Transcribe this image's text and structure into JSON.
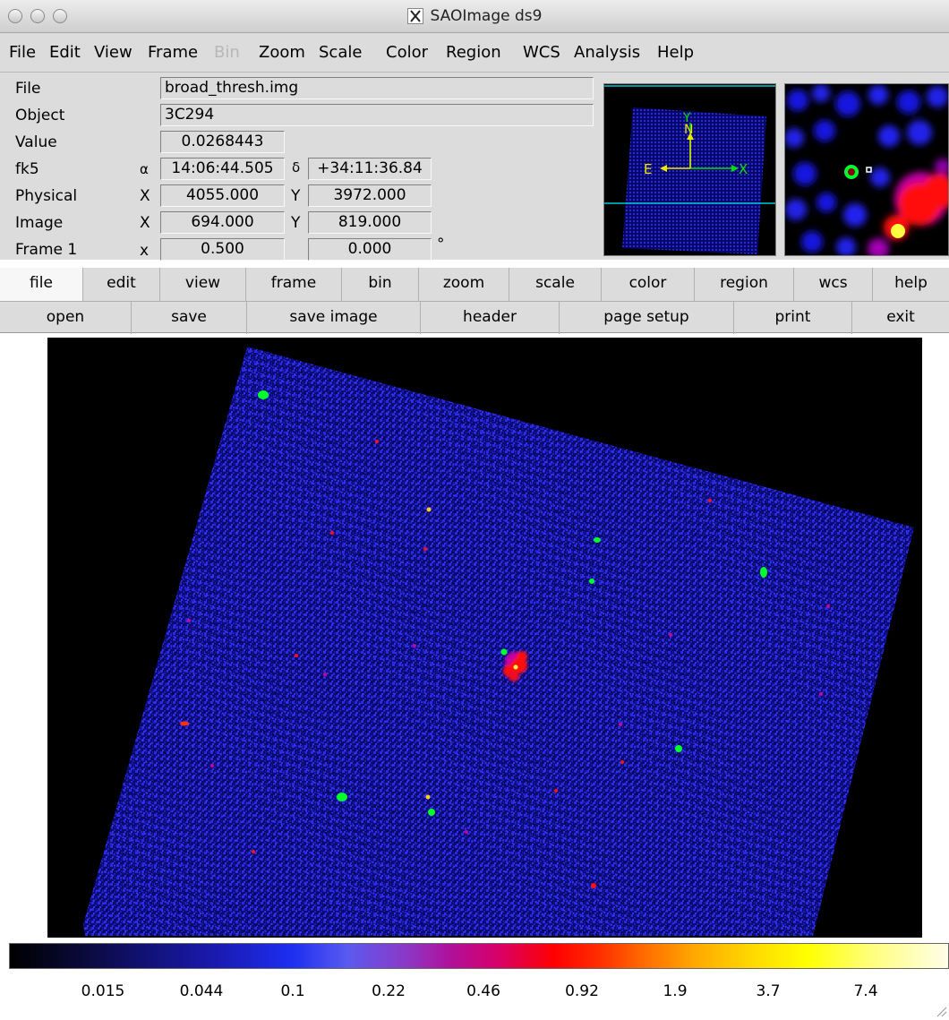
{
  "window": {
    "title": "SAOImage ds9"
  },
  "menubar": {
    "items": [
      "File",
      "Edit",
      "View",
      "Frame",
      "Bin",
      "Zoom",
      "Scale",
      "Color",
      "Region",
      "WCS",
      "Analysis",
      "Help"
    ],
    "disabled": [
      "Bin"
    ]
  },
  "info": {
    "file_label": "File",
    "file_value": "broad_thresh.img",
    "object_label": "Object",
    "object_value": "3C294",
    "value_label": "Value",
    "value_value": "0.0268443",
    "fk5_label": "fk5",
    "fk5_alpha_symbol": "α",
    "fk5_ra": "14:06:44.505",
    "fk5_delta_symbol": "δ",
    "fk5_dec": "+34:11:36.84",
    "physical_label": "Physical",
    "physical_x_label": "X",
    "physical_x": "4055.000",
    "physical_y_label": "Y",
    "physical_y": "3972.000",
    "image_label": "Image",
    "image_x_label": "X",
    "image_x": "694.000",
    "image_y_label": "Y",
    "image_y": "819.000",
    "frame_label": "Frame 1",
    "frame_x_label": "x",
    "frame_zoom": "0.500",
    "frame_angle": "0.000",
    "degree_symbol": "°"
  },
  "panner": {
    "east_label": "E",
    "north_label": "N",
    "x_label": "X",
    "y_label": "Y",
    "arrow_color": "#e8e800",
    "wcs_color": "#00e000",
    "bbox_color": "#00c8d8"
  },
  "buttonbar": {
    "main": [
      "file",
      "edit",
      "view",
      "frame",
      "bin",
      "zoom",
      "scale",
      "color",
      "region",
      "wcs",
      "help"
    ],
    "active": "file",
    "file_buttons": [
      "open",
      "save",
      "save image",
      "header",
      "page setup",
      "print",
      "exit"
    ]
  },
  "colorbar": {
    "colormap": "sls",
    "ticks": [
      "0.015",
      "0.044",
      "0.1",
      "0.22",
      "0.46",
      "0.92",
      "1.9",
      "3.7",
      "7.4"
    ],
    "scale": "log"
  },
  "image": {
    "colors": {
      "background": "#1414d2",
      "mid": "#8a00a8",
      "source": "#00ff2a",
      "hot": "#ff1010",
      "core": "#ffff40"
    }
  }
}
